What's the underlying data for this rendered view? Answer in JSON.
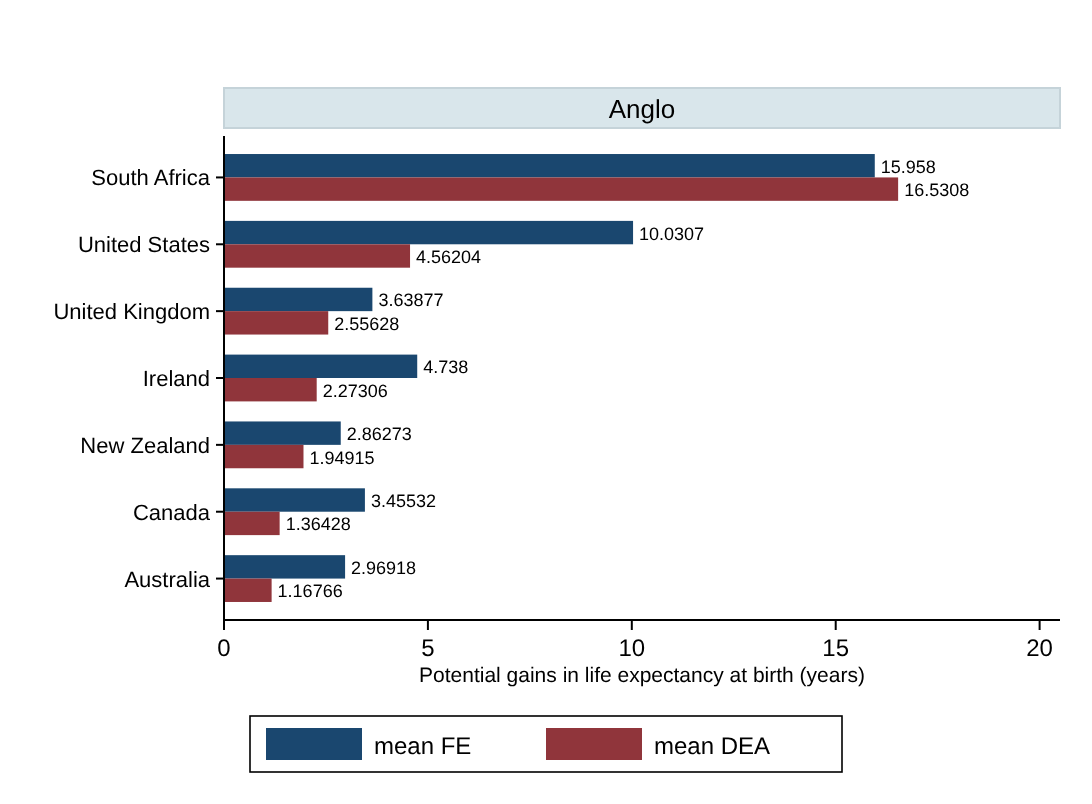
{
  "chart_data": {
    "type": "bar",
    "orientation": "horizontal",
    "title": "Anglo",
    "xlabel": "Potential gains in life expectancy at birth (years)",
    "categories": [
      "South Africa",
      "United States",
      "United Kingdom",
      "Ireland",
      "New Zealand",
      "Canada",
      "Australia"
    ],
    "series": [
      {
        "name": "mean FE",
        "color": "#1a476f",
        "values": [
          15.958,
          10.0307,
          3.63877,
          4.738,
          2.86273,
          3.45532,
          2.96918
        ]
      },
      {
        "name": "mean DEA",
        "color": "#90353b",
        "values": [
          16.5308,
          4.56204,
          2.55628,
          2.27306,
          1.94915,
          1.36428,
          1.16766
        ]
      }
    ],
    "xlim": [
      0,
      20.5
    ],
    "xticks": [
      0,
      5,
      10,
      15,
      20
    ],
    "data_labels": true,
    "legend": "bottom",
    "grid": false
  }
}
